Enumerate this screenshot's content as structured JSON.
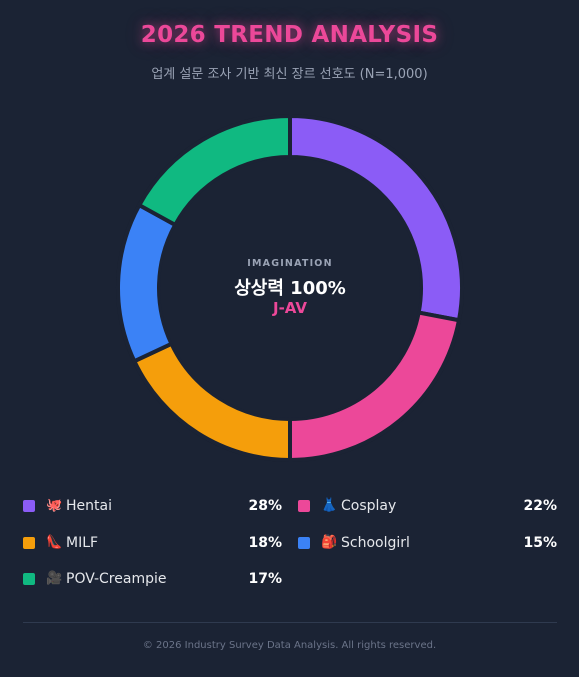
{
  "title": "2026 TREND ANALYSIS",
  "subtitle": "업계 설문 조사 기반 최신 장르 선호도 (N=1,000)",
  "center": {
    "kicker": "IMAGINATION",
    "main": "상상력 100%",
    "sub": "J-AV"
  },
  "chart_data": {
    "type": "pie",
    "style": "donut",
    "title": "2026 TREND ANALYSIS",
    "subtitle": "업계 설문 조사 기반 최신 장르 선호도 (N=1,000)",
    "categories": [
      "Hentai",
      "Cosplay",
      "MILF",
      "Schoolgirl",
      "POV-Creampie"
    ],
    "values": [
      28,
      22,
      18,
      15,
      17
    ],
    "value_labels": [
      "28%",
      "22%",
      "18%",
      "15%",
      "17%"
    ],
    "colors": [
      "#8b5cf6",
      "#ec4899",
      "#f59e0b",
      "#3b82f6",
      "#10b981"
    ],
    "legend_placement": "bottom"
  },
  "legend": [
    {
      "label": "Hentai",
      "emoji": "🐙",
      "icon": "octopus-icon",
      "value": "28%",
      "color": "#8b5cf6"
    },
    {
      "label": "Cosplay",
      "emoji": "👗",
      "icon": "dress-icon",
      "value": "22%",
      "color": "#ec4899"
    },
    {
      "label": "MILF",
      "emoji": "👠",
      "icon": "high-heel-icon",
      "value": "18%",
      "color": "#f59e0b"
    },
    {
      "label": "Schoolgirl",
      "emoji": "🎒",
      "icon": "backpack-icon",
      "value": "15%",
      "color": "#3b82f6"
    },
    {
      "label": "POV-Creampie",
      "emoji": "🎥",
      "icon": "video-camera-icon",
      "value": "17%",
      "color": "#10b981"
    }
  ],
  "footer": "© 2026 Industry Survey Data Analysis. All rights reserved."
}
